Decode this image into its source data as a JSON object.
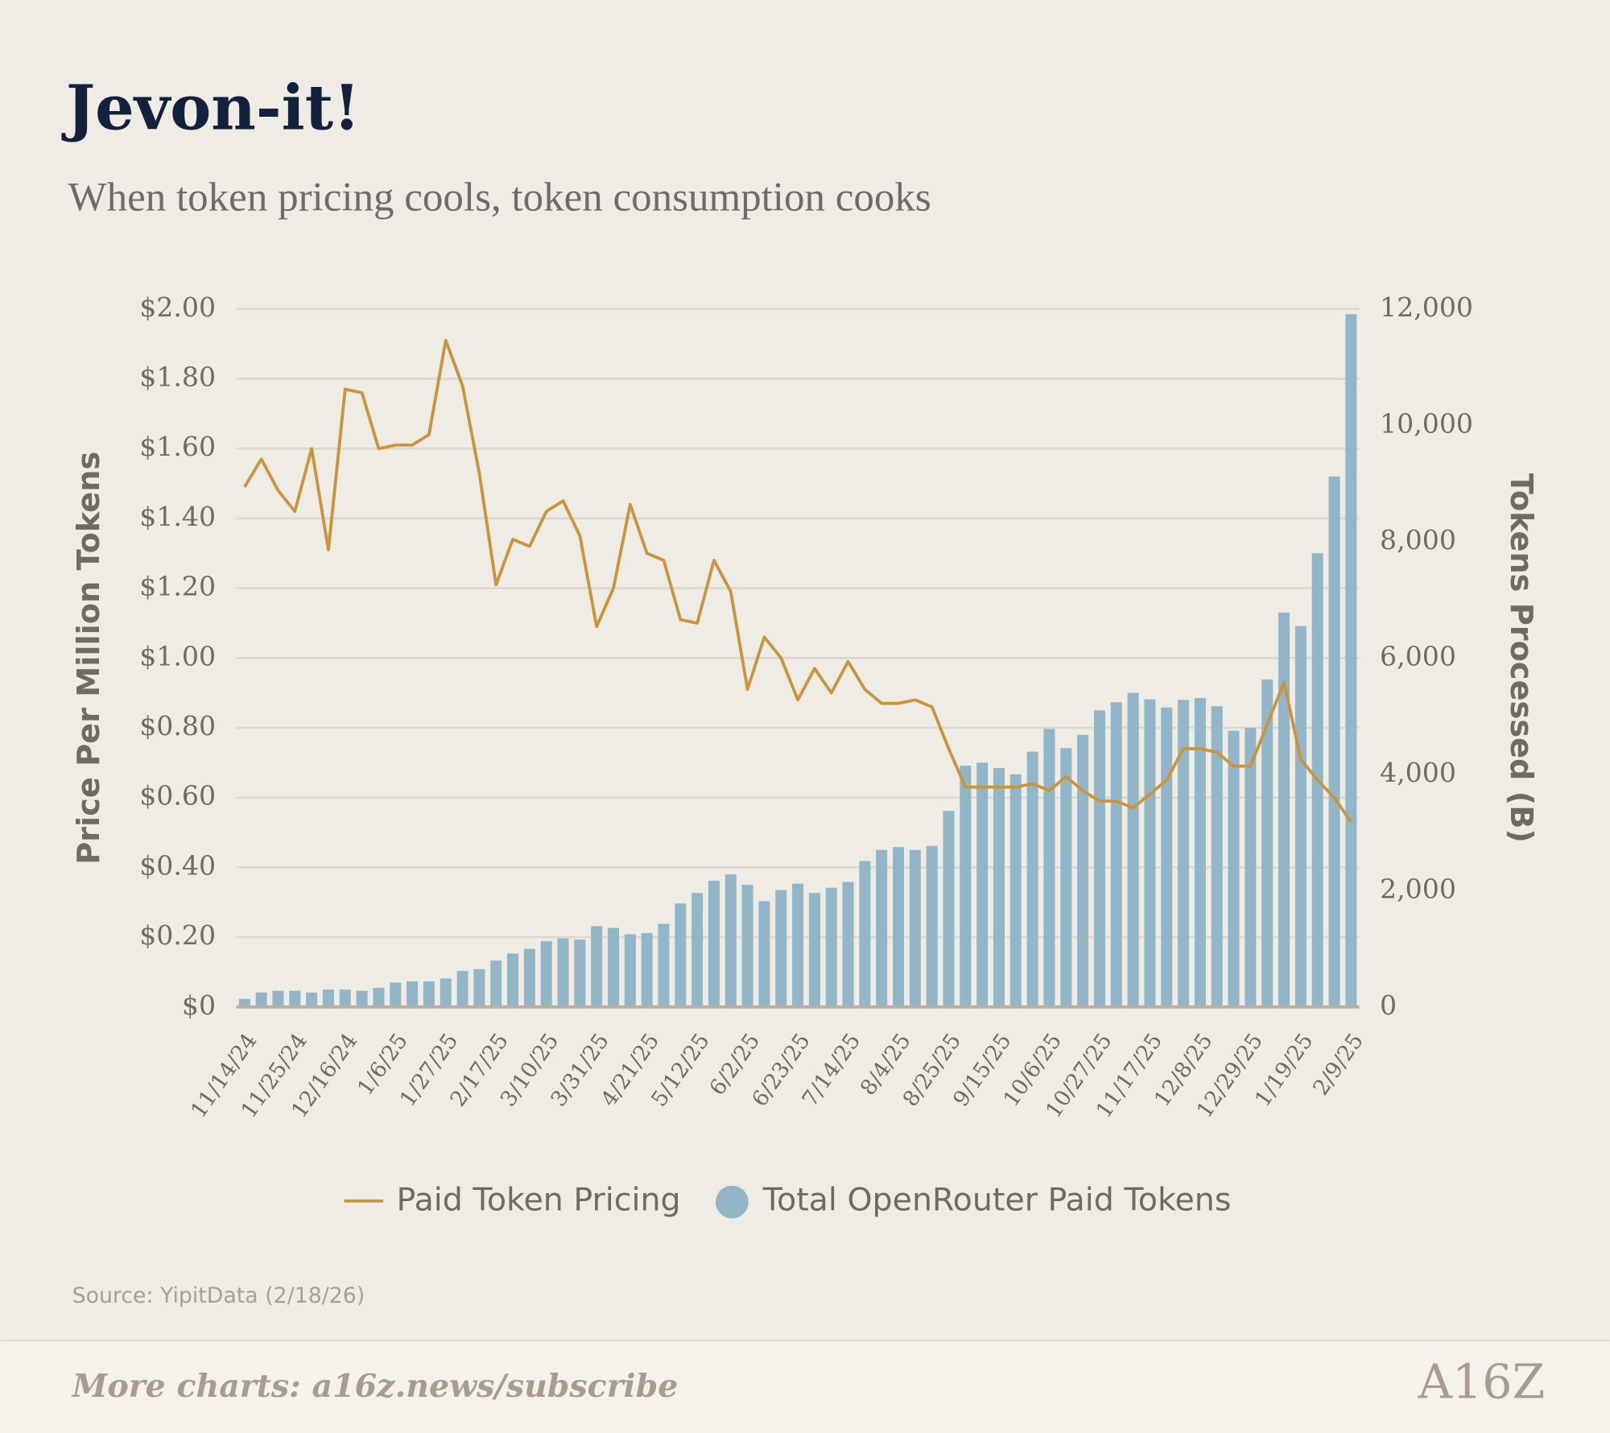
{
  "chart_data": {
    "type": "combo",
    "title": "Jevon-it!",
    "subtitle": "When token pricing cools, token consumption cooks",
    "y_label": "Price Per Million Tokens",
    "y2_label": "Tokens Processed (B)",
    "categories": [
      "11/14/24",
      null,
      null,
      "11/25/24",
      null,
      null,
      "12/16/24",
      null,
      null,
      "1/6/25",
      null,
      null,
      "1/27/25",
      null,
      null,
      "2/17/25",
      null,
      null,
      "3/10/25",
      null,
      null,
      "3/31/25",
      null,
      null,
      "4/21/25",
      null,
      null,
      "5/12/25",
      null,
      null,
      "6/2/25",
      null,
      null,
      "6/23/25",
      null,
      null,
      "7/14/25",
      null,
      null,
      "8/4/25",
      null,
      null,
      "8/25/25",
      null,
      null,
      "9/15/25",
      null,
      null,
      "10/6/25",
      null,
      null,
      "10/27/25",
      null,
      null,
      "11/17/25",
      null,
      null,
      "12/8/25",
      null,
      null,
      "12/29/25",
      null,
      null,
      "1/19/25",
      null,
      null,
      "2/9/25"
    ],
    "series": [
      {
        "name": "Paid Token Pricing",
        "type": "line",
        "color": "#c9963e",
        "values": [
          1.49,
          1.57,
          1.48,
          1.42,
          1.6,
          1.31,
          1.77,
          1.76,
          1.6,
          1.61,
          1.61,
          1.64,
          1.91,
          1.78,
          1.53,
          1.21,
          1.34,
          1.32,
          1.42,
          1.45,
          1.35,
          1.09,
          1.2,
          1.44,
          1.3,
          1.28,
          1.11,
          1.1,
          1.28,
          1.19,
          0.91,
          1.06,
          1.0,
          0.88,
          0.97,
          0.9,
          0.99,
          0.91,
          0.87,
          0.87,
          0.88,
          0.86,
          0.74,
          0.63,
          0.63,
          0.63,
          0.63,
          0.64,
          0.62,
          0.66,
          0.62,
          0.59,
          0.59,
          0.57,
          0.61,
          0.65,
          0.74,
          0.74,
          0.73,
          0.69,
          0.69,
          0.81,
          0.93,
          0.71,
          0.65,
          0.6,
          0.53
        ]
      },
      {
        "name": "Total OpenRouter Paid Tokens",
        "type": "bar",
        "axis": "y2",
        "color": "#92b6c8",
        "values": [
          140,
          250,
          280,
          280,
          250,
          300,
          300,
          280,
          330,
          420,
          440,
          440,
          490,
          620,
          650,
          800,
          920,
          1000,
          1130,
          1180,
          1160,
          1390,
          1360,
          1250,
          1270,
          1430,
          1780,
          1960,
          2170,
          2280,
          2100,
          1820,
          2010,
          2120,
          1960,
          2050,
          2150,
          2510,
          2700,
          2750,
          2700,
          2770,
          3370,
          4150,
          4200,
          4110,
          4000,
          4390,
          4780,
          4450,
          4680,
          5100,
          5240,
          5400,
          5290,
          5150,
          5280,
          5310,
          5170,
          4750,
          4800,
          5630,
          6780,
          6550,
          7800,
          9120,
          11910
        ]
      }
    ],
    "ylim": [
      0,
      2
    ],
    "yticks": [
      {
        "value": 0,
        "label": "$0"
      },
      {
        "value": 0.2,
        "label": "$0.20"
      },
      {
        "value": 0.4,
        "label": "$0.40"
      },
      {
        "value": 0.6,
        "label": "$0.60"
      },
      {
        "value": 0.8,
        "label": "$0.80"
      },
      {
        "value": 1,
        "label": "$1.00"
      },
      {
        "value": 1.2,
        "label": "$1.20"
      },
      {
        "value": 1.4,
        "label": "$1.40"
      },
      {
        "value": 1.6,
        "label": "$1.60"
      },
      {
        "value": 1.8,
        "label": "$1.80"
      },
      {
        "value": 2,
        "label": "$2.00"
      }
    ],
    "y2lim": [
      0,
      12000
    ],
    "y2ticks": [
      0,
      {
        "value": 2000,
        "label": "2,000"
      },
      {
        "value": 4000,
        "label": "4,000"
      },
      {
        "value": 6000,
        "label": "6,000"
      },
      {
        "value": 8000,
        "label": "8,000"
      },
      {
        "value": 10000,
        "label": "10,000"
      },
      {
        "value": 12000,
        "label": "12,000"
      }
    ],
    "grid": true,
    "legend": "bottom",
    "source": "Source: YipitData (2/18/26)"
  },
  "footer": {
    "text": "More charts: a16z.news/subscribe",
    "logo": "A16Z"
  }
}
